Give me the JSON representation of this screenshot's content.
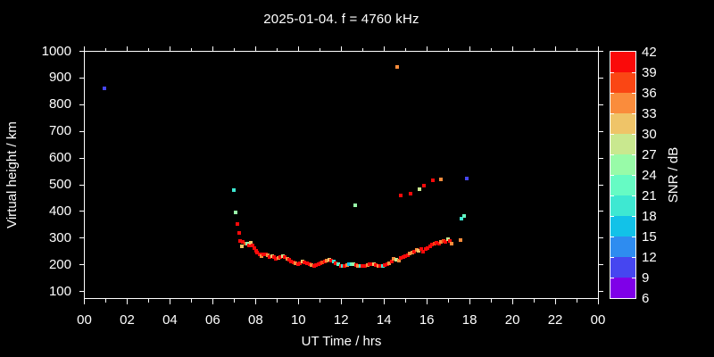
{
  "title": "2025-01-04. f = 4760 kHz",
  "axes": {
    "x_label": "UT Time / hrs",
    "y_label": "Virtual height / km",
    "x_ticks": [
      "00",
      "02",
      "04",
      "06",
      "08",
      "10",
      "12",
      "14",
      "16",
      "18",
      "20",
      "22",
      "00"
    ],
    "y_ticks": [
      "100",
      "200",
      "300",
      "400",
      "500",
      "600",
      "700",
      "800",
      "900",
      "1000"
    ],
    "x_range_hours": [
      0,
      24
    ],
    "y_range_km": [
      75,
      1000
    ]
  },
  "colorbar": {
    "label": "SNR / dB",
    "tick_values": [
      6,
      9,
      12,
      15,
      18,
      21,
      24,
      27,
      30,
      33,
      36,
      39,
      42
    ],
    "segment_colors_bottom_to_top": [
      "#7F00E8",
      "#4646F0",
      "#2E8CF0",
      "#12C2E8",
      "#3EE8D2",
      "#66FBC4",
      "#98FBA8",
      "#C9E88F",
      "#EFC468",
      "#FA8C3C",
      "#FA4614",
      "#FA0A0A"
    ]
  },
  "colors": {
    "background": "#000000",
    "text": "#ffffff",
    "frame": "#ffffff"
  },
  "chart_data": {
    "type": "scatter",
    "title": "2025-01-04. f = 4760 kHz",
    "xlabel": "UT Time / hrs",
    "ylabel": "Virtual height / km",
    "xlim": [
      0,
      24
    ],
    "ylim": [
      75,
      1000
    ],
    "grid": false,
    "color_scale": {
      "label": "SNR / dB",
      "min": 6,
      "max": 42,
      "step": 3,
      "colors": [
        "#7F00E8",
        "#4646F0",
        "#2E8CF0",
        "#12C2E8",
        "#3EE8D2",
        "#66FBC4",
        "#98FBA8",
        "#C9E88F",
        "#EFC468",
        "#FA8C3C",
        "#FA4614",
        "#FA0A0A"
      ]
    },
    "point_format": "[ut_hour, virtual_height_km, snr_db]",
    "points": [
      [
        0.94,
        862,
        10.5
      ],
      [
        6.99,
        480,
        19.5
      ],
      [
        7.07,
        395,
        25.5
      ],
      [
        7.15,
        353,
        40.5
      ],
      [
        7.23,
        320,
        40.5
      ],
      [
        7.28,
        291,
        40.5
      ],
      [
        7.36,
        271,
        31.5
      ],
      [
        7.42,
        286,
        40.5
      ],
      [
        7.53,
        281,
        37.5
      ],
      [
        7.6,
        281,
        25.5
      ],
      [
        7.69,
        273,
        40.5
      ],
      [
        7.78,
        282,
        31.5
      ],
      [
        7.86,
        272,
        40.5
      ],
      [
        7.96,
        263,
        40.5
      ],
      [
        8.01,
        254,
        40.5
      ],
      [
        8.08,
        245,
        40.5
      ],
      [
        8.18,
        238,
        40.5
      ],
      [
        8.28,
        234,
        34.5
      ],
      [
        8.37,
        238,
        40.5
      ],
      [
        8.47,
        241,
        40.5
      ],
      [
        8.57,
        236,
        34.5
      ],
      [
        8.65,
        228,
        40.5
      ],
      [
        8.76,
        233,
        31.5
      ],
      [
        8.86,
        229,
        40.5
      ],
      [
        8.95,
        223,
        40.5
      ],
      [
        9.05,
        226,
        34.5
      ],
      [
        9.15,
        231,
        40.5
      ],
      [
        9.26,
        233,
        28.5
      ],
      [
        9.36,
        229,
        40.5
      ],
      [
        9.47,
        224,
        34.5
      ],
      [
        9.57,
        219,
        40.5
      ],
      [
        9.67,
        214,
        40.5
      ],
      [
        9.78,
        209,
        40.5
      ],
      [
        9.88,
        206,
        34.5
      ],
      [
        9.99,
        204,
        40.5
      ],
      [
        10.09,
        207,
        40.5
      ],
      [
        10.2,
        211,
        31.5
      ],
      [
        10.3,
        209,
        40.5
      ],
      [
        10.4,
        206,
        40.5
      ],
      [
        10.51,
        202,
        40.5
      ],
      [
        10.61,
        199,
        34.5
      ],
      [
        10.72,
        197,
        40.5
      ],
      [
        10.82,
        199,
        40.5
      ],
      [
        10.93,
        202,
        40.5
      ],
      [
        11.03,
        206,
        40.5
      ],
      [
        11.13,
        209,
        37.5
      ],
      [
        11.24,
        214,
        40.5
      ],
      [
        11.34,
        217,
        34.5
      ],
      [
        11.45,
        219,
        31.5
      ],
      [
        11.55,
        216,
        40.5
      ],
      [
        11.65,
        211,
        19.5
      ],
      [
        11.76,
        206,
        40.5
      ],
      [
        11.86,
        201,
        22.5
      ],
      [
        11.97,
        197,
        40.5
      ],
      [
        12.07,
        196,
        19.5
      ],
      [
        12.17,
        197,
        40.5
      ],
      [
        12.28,
        199,
        34.5
      ],
      [
        12.38,
        201,
        16.5
      ],
      [
        12.49,
        202,
        22.5
      ],
      [
        12.59,
        201,
        25.5
      ],
      [
        12.64,
        423,
        25.5
      ],
      [
        12.7,
        199,
        40.5
      ],
      [
        12.8,
        197,
        34.5
      ],
      [
        12.9,
        196,
        19.5
      ],
      [
        13.01,
        196,
        40.5
      ],
      [
        13.11,
        197,
        40.5
      ],
      [
        13.22,
        199,
        34.5
      ],
      [
        13.32,
        201,
        40.5
      ],
      [
        13.42,
        202,
        40.5
      ],
      [
        13.53,
        201,
        31.5
      ],
      [
        13.63,
        199,
        40.5
      ],
      [
        13.74,
        197,
        34.5
      ],
      [
        13.84,
        196,
        40.5
      ],
      [
        13.94,
        196,
        19.5
      ],
      [
        14.05,
        199,
        40.5
      ],
      [
        14.15,
        202,
        40.5
      ],
      [
        14.26,
        206,
        34.5
      ],
      [
        14.36,
        211,
        40.5
      ],
      [
        14.47,
        223,
        34.5
      ],
      [
        14.58,
        218,
        28.5
      ],
      [
        14.6,
        940,
        34.5
      ],
      [
        14.7,
        216,
        34.5
      ],
      [
        14.78,
        460,
        40.5
      ],
      [
        14.8,
        225,
        40.5
      ],
      [
        14.9,
        228,
        40.5
      ],
      [
        15.0,
        234,
        40.5
      ],
      [
        15.11,
        237,
        40.5
      ],
      [
        15.22,
        242,
        34.5
      ],
      [
        15.24,
        467,
        40.5
      ],
      [
        15.32,
        245,
        34.5
      ],
      [
        15.41,
        250,
        40.5
      ],
      [
        15.53,
        256,
        34.5
      ],
      [
        15.63,
        253,
        31.5
      ],
      [
        15.64,
        484,
        28.5
      ],
      [
        15.73,
        259,
        40.5
      ],
      [
        15.84,
        250,
        40.5
      ],
      [
        15.87,
        497,
        40.5
      ],
      [
        15.94,
        259,
        40.5
      ],
      [
        16.05,
        264,
        40.5
      ],
      [
        16.15,
        270,
        40.5
      ],
      [
        16.26,
        275,
        40.5
      ],
      [
        16.29,
        517,
        40.5
      ],
      [
        16.36,
        278,
        37.5
      ],
      [
        16.47,
        282,
        40.5
      ],
      [
        16.57,
        281,
        40.5
      ],
      [
        16.68,
        286,
        34.5
      ],
      [
        16.68,
        520,
        34.5
      ],
      [
        16.78,
        290,
        37.5
      ],
      [
        16.88,
        286,
        40.5
      ],
      [
        16.98,
        295,
        28.5
      ],
      [
        17.08,
        290,
        40.5
      ],
      [
        17.14,
        280,
        34.5
      ],
      [
        17.58,
        293,
        34.5
      ],
      [
        17.64,
        372,
        19.5
      ],
      [
        17.74,
        383,
        22.5
      ],
      [
        17.87,
        524,
        10.5
      ]
    ]
  }
}
